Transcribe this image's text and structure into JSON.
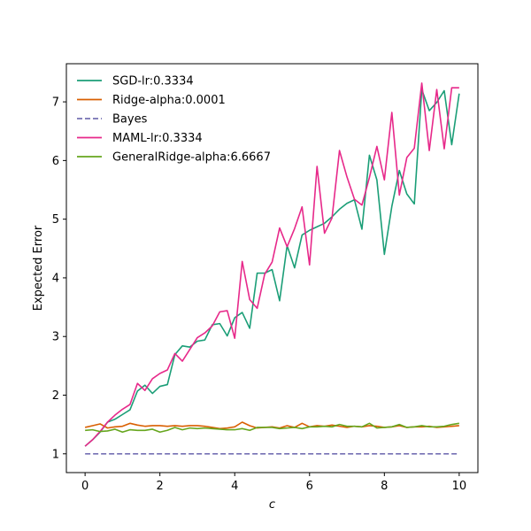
{
  "chart_data": {
    "type": "line",
    "xlabel": "c",
    "ylabel": "Expected Error",
    "xlim": [
      -0.5,
      10.5
    ],
    "ylim": [
      0.68,
      7.65
    ],
    "xticks": [
      0,
      2,
      4,
      6,
      8,
      10
    ],
    "yticks": [
      1,
      2,
      3,
      4,
      5,
      6,
      7
    ],
    "grid": false,
    "legend_position": "top-left",
    "x": [
      0.0,
      0.2,
      0.4,
      0.6,
      0.8,
      1.0,
      1.2,
      1.4,
      1.6,
      1.8,
      2.0,
      2.2,
      2.4,
      2.6,
      2.8,
      3.0,
      3.2,
      3.4,
      3.6,
      3.8,
      4.0,
      4.2,
      4.4,
      4.6,
      4.8,
      5.0,
      5.2,
      5.4,
      5.6,
      5.8,
      6.0,
      6.2,
      6.4,
      6.6,
      6.8,
      7.0,
      7.2,
      7.4,
      7.6,
      7.8,
      8.0,
      8.2,
      8.4,
      8.6,
      8.8,
      9.0,
      9.2,
      9.4,
      9.6,
      9.8,
      10.0
    ],
    "series": [
      {
        "name": "SGD-lr:0.3334",
        "color": "#1b9e77",
        "dashed": false,
        "values": [
          1.13,
          1.24,
          1.37,
          1.54,
          1.59,
          1.67,
          1.75,
          2.07,
          2.17,
          2.03,
          2.15,
          2.18,
          2.69,
          2.84,
          2.82,
          2.92,
          2.94,
          3.2,
          3.22,
          3.01,
          3.32,
          3.41,
          3.14,
          4.08,
          4.08,
          4.14,
          3.61,
          4.55,
          4.17,
          4.73,
          4.81,
          4.87,
          4.93,
          5.04,
          5.17,
          5.27,
          5.33,
          4.83,
          6.09,
          5.67,
          4.4,
          5.22,
          5.83,
          5.43,
          5.26,
          7.21,
          6.85,
          6.99,
          7.19,
          6.27,
          7.14
        ]
      },
      {
        "name": "Ridge-alpha:0.0001",
        "color": "#d95f02",
        "dashed": false,
        "values": [
          1.45,
          1.48,
          1.51,
          1.44,
          1.46,
          1.47,
          1.52,
          1.49,
          1.47,
          1.48,
          1.48,
          1.47,
          1.48,
          1.47,
          1.48,
          1.48,
          1.47,
          1.45,
          1.43,
          1.44,
          1.46,
          1.54,
          1.48,
          1.44,
          1.45,
          1.46,
          1.44,
          1.48,
          1.45,
          1.52,
          1.46,
          1.48,
          1.47,
          1.49,
          1.47,
          1.45,
          1.47,
          1.46,
          1.48,
          1.47,
          1.45,
          1.46,
          1.48,
          1.45,
          1.46,
          1.46,
          1.47,
          1.45,
          1.46,
          1.47,
          1.48
        ]
      },
      {
        "name": "Bayes",
        "color": "#7570b3",
        "dashed": true,
        "values": [
          1.0,
          1.0,
          1.0,
          1.0,
          1.0,
          1.0,
          1.0,
          1.0,
          1.0,
          1.0,
          1.0,
          1.0,
          1.0,
          1.0,
          1.0,
          1.0,
          1.0,
          1.0,
          1.0,
          1.0,
          1.0,
          1.0,
          1.0,
          1.0,
          1.0,
          1.0,
          1.0,
          1.0,
          1.0,
          1.0,
          1.0,
          1.0,
          1.0,
          1.0,
          1.0,
          1.0,
          1.0,
          1.0,
          1.0,
          1.0,
          1.0,
          1.0,
          1.0,
          1.0,
          1.0,
          1.0,
          1.0,
          1.0,
          1.0,
          1.0,
          1.0
        ]
      },
      {
        "name": "MAML-lr:0.3334",
        "color": "#e7298a",
        "dashed": false,
        "values": [
          1.13,
          1.24,
          1.38,
          1.54,
          1.66,
          1.76,
          1.84,
          2.2,
          2.08,
          2.28,
          2.37,
          2.43,
          2.71,
          2.58,
          2.78,
          2.98,
          3.06,
          3.18,
          3.42,
          3.44,
          2.97,
          4.28,
          3.63,
          3.48,
          4.06,
          4.27,
          4.85,
          4.53,
          4.84,
          5.21,
          4.22,
          5.9,
          4.76,
          5.02,
          6.17,
          5.72,
          5.34,
          5.24,
          5.71,
          6.24,
          5.67,
          6.82,
          5.41,
          6.05,
          6.21,
          7.32,
          6.17,
          7.21,
          6.2,
          7.24,
          7.24
        ]
      },
      {
        "name": "GeneralRidge-alpha:6.6667",
        "color": "#66a61e",
        "dashed": false,
        "values": [
          1.4,
          1.41,
          1.38,
          1.39,
          1.42,
          1.37,
          1.41,
          1.4,
          1.4,
          1.42,
          1.37,
          1.4,
          1.45,
          1.41,
          1.44,
          1.43,
          1.44,
          1.43,
          1.42,
          1.41,
          1.41,
          1.43,
          1.4,
          1.45,
          1.45,
          1.45,
          1.43,
          1.44,
          1.45,
          1.43,
          1.46,
          1.46,
          1.47,
          1.46,
          1.5,
          1.47,
          1.47,
          1.46,
          1.52,
          1.44,
          1.45,
          1.46,
          1.5,
          1.45,
          1.46,
          1.48,
          1.46,
          1.46,
          1.47,
          1.5,
          1.52
        ]
      }
    ]
  }
}
